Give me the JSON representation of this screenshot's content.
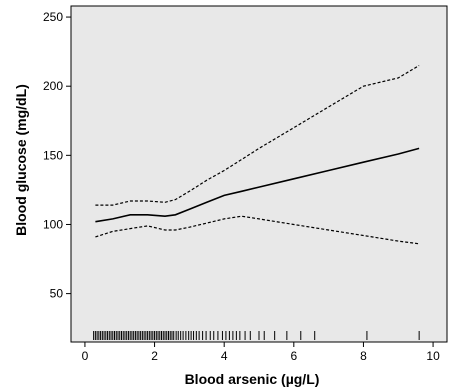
{
  "chart_data": {
    "type": "line",
    "xlabel": "Blood arsenic (µg/L)",
    "ylabel": "Blood glucose (mg/dL)",
    "xlim": [
      -0.4,
      10.4
    ],
    "ylim": [
      15,
      258
    ],
    "x_ticks": [
      0,
      2,
      4,
      6,
      8,
      10
    ],
    "y_ticks": [
      50,
      100,
      150,
      200,
      250
    ],
    "grid": false,
    "background": "#e8e8e8",
    "series": [
      {
        "style": "solid",
        "x": [
          0.3,
          0.8,
          1.3,
          1.8,
          2.3,
          2.6,
          3.0,
          3.5,
          4.0,
          4.5,
          5.0,
          6.0,
          7.0,
          8.0,
          9.0,
          9.6
        ],
        "y": [
          102,
          104,
          107,
          107,
          106,
          107,
          111,
          116,
          121,
          124,
          127,
          133,
          139,
          145,
          151,
          155
        ]
      },
      {
        "style": "dashed",
        "x": [
          0.3,
          0.8,
          1.3,
          1.8,
          2.3,
          2.6,
          3.0,
          3.5,
          4.0,
          4.5,
          5.0,
          6.0,
          7.0,
          8.0,
          9.0,
          9.6
        ],
        "y": [
          114,
          114,
          117,
          117,
          116,
          118,
          124,
          132,
          139,
          147,
          155,
          170,
          185,
          200,
          206,
          215
        ]
      },
      {
        "style": "dashed",
        "x": [
          0.3,
          0.8,
          1.3,
          1.8,
          2.3,
          2.6,
          3.0,
          3.5,
          4.0,
          4.5,
          5.0,
          6.0,
          7.0,
          8.0,
          9.0,
          9.6
        ],
        "y": [
          91,
          95,
          97,
          99,
          96,
          96,
          98,
          101,
          104,
          106,
          104,
          100,
          96,
          92,
          88,
          86
        ]
      }
    ],
    "rug_x": [
      0.25,
      0.3,
      0.35,
      0.4,
      0.45,
      0.5,
      0.55,
      0.6,
      0.65,
      0.7,
      0.75,
      0.8,
      0.85,
      0.9,
      0.95,
      1.0,
      1.05,
      1.1,
      1.15,
      1.2,
      1.25,
      1.3,
      1.35,
      1.4,
      1.45,
      1.5,
      1.55,
      1.6,
      1.65,
      1.7,
      1.75,
      1.8,
      1.85,
      1.9,
      1.95,
      2.0,
      2.05,
      2.1,
      2.15,
      2.2,
      2.25,
      2.3,
      2.35,
      2.4,
      2.45,
      2.5,
      2.55,
      2.62,
      2.68,
      2.75,
      2.82,
      2.9,
      2.98,
      3.05,
      3.12,
      3.2,
      3.28,
      3.38,
      3.48,
      3.6,
      3.7,
      3.82,
      3.95,
      4.05,
      4.15,
      4.25,
      4.35,
      4.45,
      4.6,
      4.75,
      5.0,
      5.15,
      5.45,
      5.8,
      6.2,
      6.6,
      8.1,
      9.6
    ]
  }
}
